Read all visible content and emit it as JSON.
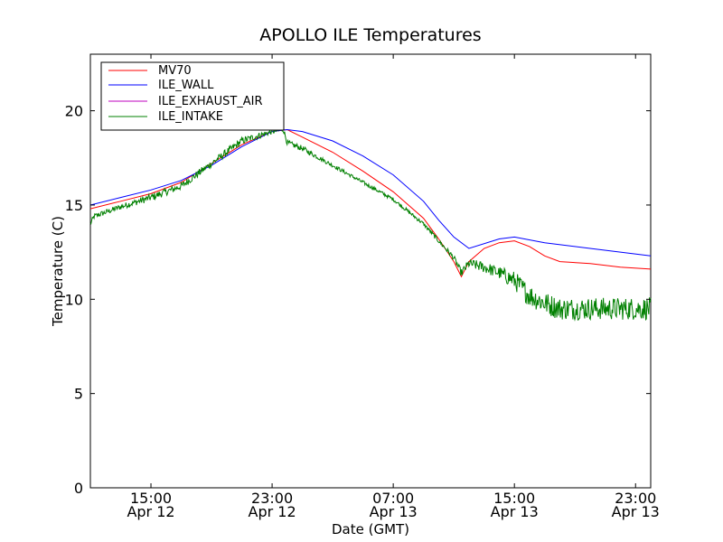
{
  "chart_data": {
    "type": "line",
    "title": "APOLLO ILE Temperatures",
    "xlabel": "Date (GMT)",
    "ylabel": "Temperature (C)",
    "xlim": [
      "2014-04-12 11:00",
      "2014-04-14 00:00"
    ],
    "ylim": [
      0,
      23
    ],
    "yticks": [
      0,
      5,
      10,
      15,
      20
    ],
    "xticks": [
      {
        "line1": "15:00",
        "line2": "Apr 12"
      },
      {
        "line1": "23:00",
        "line2": "Apr 12"
      },
      {
        "line1": "07:00",
        "line2": "Apr 13"
      },
      {
        "line1": "15:00",
        "line2": "Apr 13"
      },
      {
        "line1": "23:00",
        "line2": "Apr 13"
      }
    ],
    "legend_position": "top-left",
    "grid": false,
    "series": [
      {
        "name": "MV70",
        "color": "#ff0000",
        "x": [
          "Apr 12 11:00",
          "Apr 12 13:00",
          "Apr 12 15:00",
          "Apr 12 17:00",
          "Apr 12 19:00",
          "Apr 12 21:00",
          "Apr 12 23:00",
          "Apr 13 00:00",
          "Apr 13 01:00",
          "Apr 13 03:00",
          "Apr 13 05:00",
          "Apr 13 07:00",
          "Apr 13 09:00",
          "Apr 13 10:00",
          "Apr 13 11:00",
          "Apr 13 11:30",
          "Apr 13 12:00",
          "Apr 13 13:00",
          "Apr 13 14:00",
          "Apr 13 15:00",
          "Apr 13 16:00",
          "Apr 13 17:00",
          "Apr 13 18:00",
          "Apr 13 20:00",
          "Apr 13 22:00",
          "Apr 14 00:00"
        ],
        "y": [
          14.8,
          15.2,
          15.6,
          16.2,
          17.2,
          18.2,
          18.9,
          19.0,
          18.6,
          17.8,
          16.8,
          15.7,
          14.3,
          13.2,
          12.0,
          11.2,
          12.0,
          12.7,
          13.0,
          13.1,
          12.8,
          12.3,
          12.0,
          11.9,
          11.7,
          11.6
        ]
      },
      {
        "name": "ILE_WALL",
        "color": "#0000ff",
        "x": [
          "Apr 12 11:00",
          "Apr 12 13:00",
          "Apr 12 15:00",
          "Apr 12 17:00",
          "Apr 12 19:00",
          "Apr 12 21:00",
          "Apr 12 23:00",
          "Apr 13 00:00",
          "Apr 13 01:00",
          "Apr 13 03:00",
          "Apr 13 05:00",
          "Apr 13 07:00",
          "Apr 13 09:00",
          "Apr 13 10:00",
          "Apr 13 11:00",
          "Apr 13 12:00",
          "Apr 13 14:00",
          "Apr 13 15:00",
          "Apr 13 17:00",
          "Apr 13 20:00",
          "Apr 14 00:00"
        ],
        "y": [
          15.0,
          15.4,
          15.8,
          16.3,
          17.1,
          18.1,
          18.9,
          19.0,
          18.9,
          18.4,
          17.6,
          16.6,
          15.2,
          14.2,
          13.3,
          12.7,
          13.2,
          13.3,
          13.0,
          12.7,
          12.3
        ]
      },
      {
        "name": "ILE_EXHAUST_AIR",
        "color": "#bf00bf",
        "x": [],
        "y": []
      },
      {
        "name": "ILE_INTAKE",
        "color": "#008000",
        "noisy": true,
        "x": [
          "Apr 12 11:00",
          "Apr 12 11:15",
          "Apr 12 13:00",
          "Apr 12 15:00",
          "Apr 12 17:00",
          "Apr 12 19:00",
          "Apr 12 21:00",
          "Apr 12 23:00",
          "Apr 12 23:45",
          "Apr 13 00:00",
          "Apr 13 01:00",
          "Apr 13 03:00",
          "Apr 13 05:00",
          "Apr 13 07:00",
          "Apr 13 09:00",
          "Apr 13 11:00",
          "Apr 13 11:30",
          "Apr 13 12:00",
          "Apr 13 13:00",
          "Apr 13 14:00",
          "Apr 13 15:00",
          "Apr 13 16:00",
          "Apr 13 17:00",
          "Apr 13 18:00",
          "Apr 13 20:00",
          "Apr 13 22:00",
          "Apr 14 00:00"
        ],
        "y": [
          14.0,
          14.4,
          14.9,
          15.4,
          16.0,
          17.2,
          18.4,
          18.9,
          19.0,
          18.3,
          18.0,
          17.1,
          16.2,
          15.3,
          14.0,
          12.2,
          11.4,
          11.9,
          11.7,
          11.4,
          11.0,
          10.2,
          9.8,
          9.5,
          9.5,
          9.5,
          9.5
        ],
        "noise": [
          0.15,
          0.15,
          0.15,
          0.2,
          0.2,
          0.2,
          0.2,
          0.15,
          0.15,
          0.15,
          0.15,
          0.1,
          0.1,
          0.1,
          0.1,
          0.15,
          0.2,
          0.25,
          0.3,
          0.35,
          0.5,
          0.6,
          0.6,
          0.6,
          0.6,
          0.6,
          0.6
        ]
      }
    ]
  }
}
